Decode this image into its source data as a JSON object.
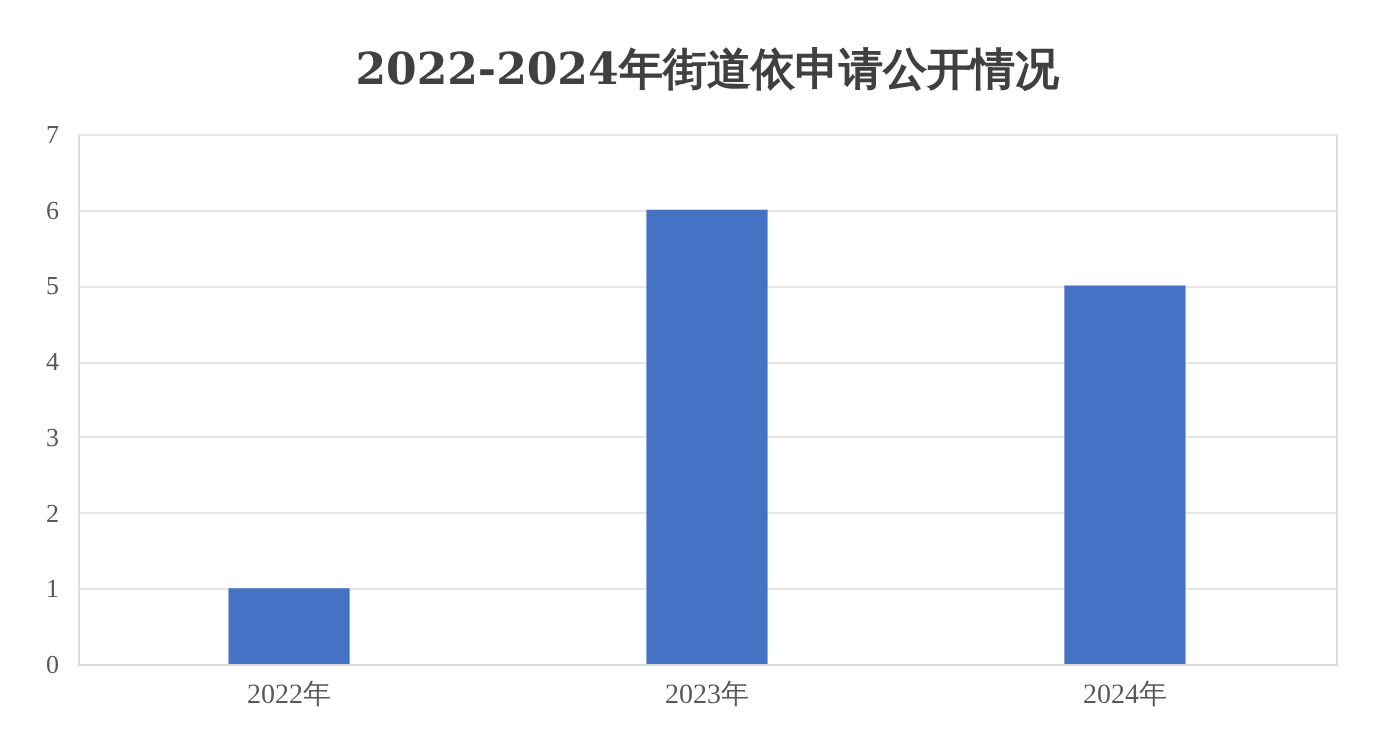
{
  "chart_data": {
    "type": "bar",
    "title": "2022-2024年街道依申请公开情况",
    "categories": [
      "2022年",
      "2023年",
      "2024年"
    ],
    "values": [
      1,
      6,
      5
    ],
    "color": "#4472c4",
    "ylim": [
      0,
      7
    ],
    "yticks": [
      0,
      1,
      2,
      3,
      4,
      5,
      6,
      7
    ],
    "grid": "y",
    "legend": false
  }
}
